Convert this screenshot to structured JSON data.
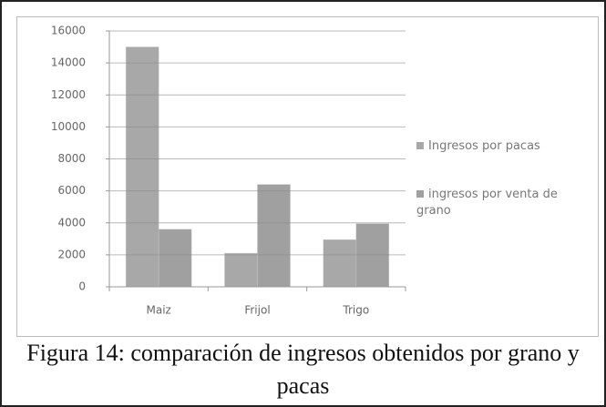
{
  "chart_data": {
    "type": "bar",
    "categories": [
      "Maiz",
      "Frijol",
      "Trigo"
    ],
    "series": [
      {
        "name": "Ingresos por pacas",
        "color": "#a8a8a8",
        "values": [
          15000,
          2100,
          2950
        ]
      },
      {
        "name": "ingresos por venta de grano",
        "color": "#a0a0a0",
        "values": [
          3600,
          6400,
          3950
        ]
      }
    ],
    "ylim": [
      0,
      16000
    ],
    "yticks": [
      0,
      2000,
      4000,
      6000,
      8000,
      10000,
      12000,
      14000,
      16000
    ],
    "grid": true,
    "legend": "right",
    "caption": "Figura 14: comparación de ingresos obtenidos por grano y pacas"
  }
}
